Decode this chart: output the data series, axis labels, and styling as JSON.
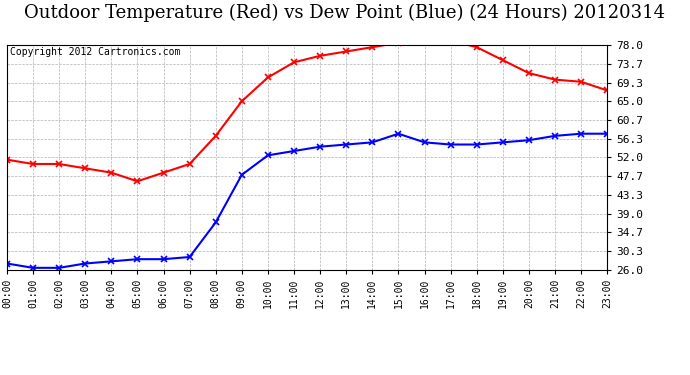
{
  "title": "Outdoor Temperature (Red) vs Dew Point (Blue) (24 Hours) 20120314",
  "copyright_text": "Copyright 2012 Cartronics.com",
  "hours": [
    "00:00",
    "01:00",
    "02:00",
    "03:00",
    "04:00",
    "05:00",
    "06:00",
    "07:00",
    "08:00",
    "09:00",
    "10:00",
    "11:00",
    "12:00",
    "13:00",
    "14:00",
    "15:00",
    "16:00",
    "17:00",
    "18:00",
    "19:00",
    "20:00",
    "21:00",
    "22:00",
    "23:00"
  ],
  "temp_red": [
    51.5,
    50.5,
    50.5,
    49.5,
    48.5,
    46.5,
    48.5,
    50.5,
    57.0,
    65.0,
    70.5,
    74.0,
    75.5,
    76.5,
    77.5,
    78.5,
    79.0,
    79.0,
    77.5,
    74.5,
    71.5,
    70.0,
    69.5,
    67.5
  ],
  "dew_blue": [
    27.5,
    26.5,
    26.5,
    27.5,
    28.0,
    28.5,
    28.5,
    29.0,
    37.0,
    48.0,
    52.5,
    53.5,
    54.5,
    55.0,
    55.5,
    57.5,
    55.5,
    55.0,
    55.0,
    55.5,
    56.0,
    57.0,
    57.5,
    57.5
  ],
  "y_ticks": [
    26.0,
    30.3,
    34.7,
    39.0,
    43.3,
    47.7,
    52.0,
    56.3,
    60.7,
    65.0,
    69.3,
    73.7,
    78.0
  ],
  "ylim": [
    26.0,
    78.0
  ],
  "temp_color": "red",
  "dew_color": "blue",
  "grid_color": "#aaaaaa",
  "bg_color": "white",
  "title_fontsize": 13,
  "copyright_fontsize": 7,
  "marker": "x",
  "markersize": 4,
  "linewidth": 1.5
}
